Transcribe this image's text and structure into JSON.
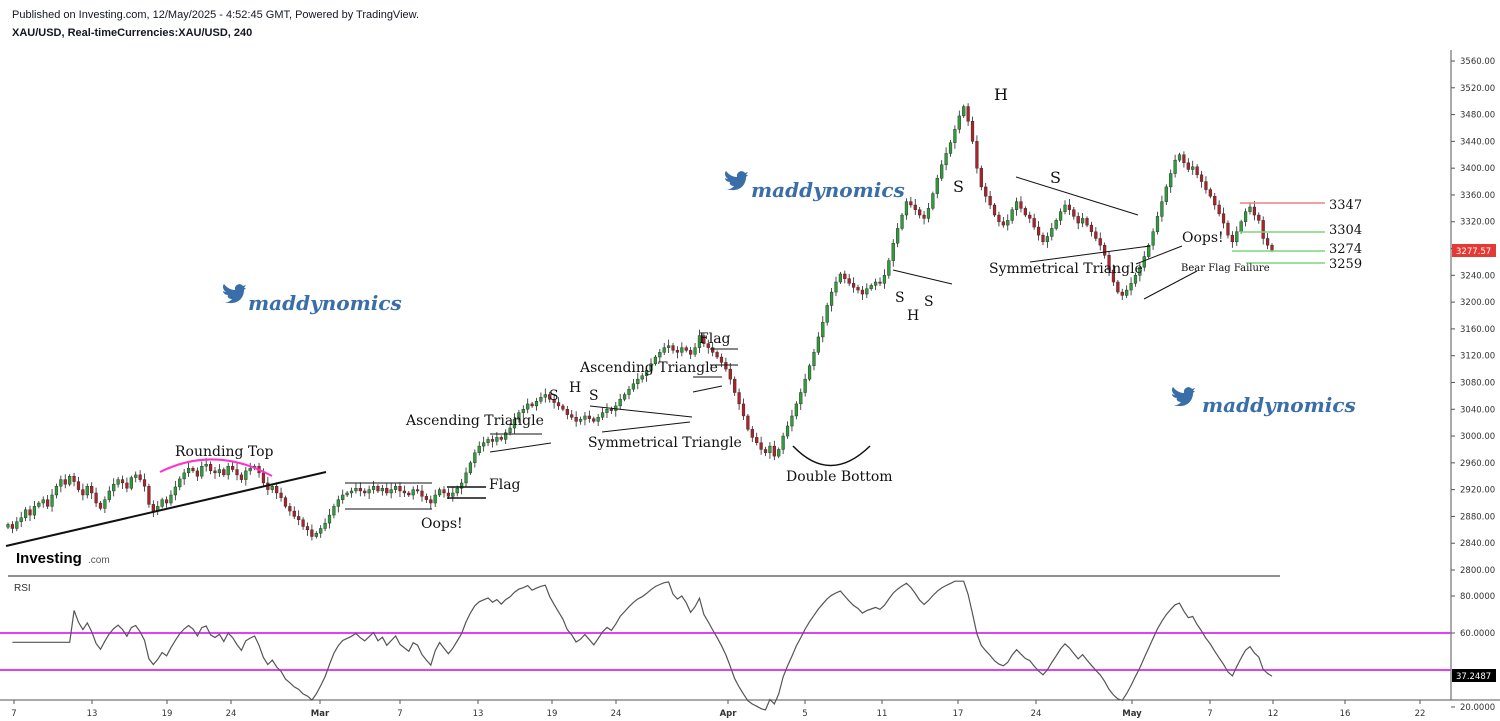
{
  "header": {
    "published": "Published on Investing.com, 12/May/2025 - 4:52:45 GMT, Powered by TradingView.",
    "symbol": "XAU/USD, Real-timeCurrencies:XAU/USD, 240"
  },
  "branding": {
    "logo": "Investing",
    "logo_suffix": ".com",
    "watermark": "maddynomics"
  },
  "chart_data": {
    "type": "candlestick",
    "price_axis": {
      "range": [
        2780,
        3570
      ],
      "ticks": [
        "3560.00",
        "3520.00",
        "3480.00",
        "3440.00",
        "3400.00",
        "3360.00",
        "3320.00",
        "3280.00",
        "3240.00",
        "3200.00",
        "3160.00",
        "3120.00",
        "3080.00",
        "3040.00",
        "3000.00",
        "2960.00",
        "2920.00",
        "2880.00",
        "2840.00",
        "2800.00"
      ],
      "current_price": "3277.57"
    },
    "x_axis": {
      "ticks": [
        {
          "label": "7",
          "bold": false
        },
        {
          "label": "13",
          "bold": false
        },
        {
          "label": "19",
          "bold": false
        },
        {
          "label": "24",
          "bold": false
        },
        {
          "label": "Mar",
          "bold": true
        },
        {
          "label": "7",
          "bold": false
        },
        {
          "label": "13",
          "bold": false
        },
        {
          "label": "19",
          "bold": false
        },
        {
          "label": "24",
          "bold": false
        },
        {
          "label": "Apr",
          "bold": true
        },
        {
          "label": "5",
          "bold": false
        },
        {
          "label": "11",
          "bold": false
        },
        {
          "label": "17",
          "bold": false
        },
        {
          "label": "24",
          "bold": false
        },
        {
          "label": "May",
          "bold": true
        },
        {
          "label": "7",
          "bold": false
        },
        {
          "label": "12",
          "bold": false
        },
        {
          "label": "16",
          "bold": false
        },
        {
          "label": "22",
          "bold": false
        }
      ]
    },
    "closes": [
      2868,
      2862,
      2872,
      2878,
      2890,
      2882,
      2895,
      2900,
      2905,
      2895,
      2912,
      2925,
      2935,
      2928,
      2940,
      2932,
      2920,
      2912,
      2925,
      2915,
      2900,
      2892,
      2905,
      2918,
      2928,
      2935,
      2930,
      2922,
      2938,
      2942,
      2935,
      2925,
      2898,
      2888,
      2895,
      2905,
      2900,
      2912,
      2924,
      2936,
      2945,
      2952,
      2948,
      2940,
      2955,
      2958,
      2948,
      2945,
      2950,
      2942,
      2955,
      2950,
      2942,
      2935,
      2948,
      2952,
      2955,
      2945,
      2930,
      2920,
      2925,
      2915,
      2908,
      2895,
      2888,
      2880,
      2875,
      2865,
      2860,
      2850,
      2855,
      2862,
      2870,
      2882,
      2895,
      2905,
      2912,
      2915,
      2918,
      2922,
      2918,
      2915,
      2920,
      2925,
      2918,
      2922,
      2915,
      2920,
      2925,
      2918,
      2915,
      2912,
      2920,
      2918,
      2910,
      2905,
      2900,
      2912,
      2920,
      2915,
      2910,
      2915,
      2922,
      2930,
      2945,
      2960,
      2975,
      2985,
      2990,
      2995,
      2992,
      2998,
      2995,
      3005,
      3012,
      3025,
      3035,
      3040,
      3048,
      3045,
      3052,
      3058,
      3062,
      3055,
      3050,
      3045,
      3040,
      3032,
      3028,
      3022,
      3025,
      3030,
      3026,
      3022,
      3028,
      3035,
      3040,
      3038,
      3045,
      3055,
      3062,
      3070,
      3078,
      3085,
      3090,
      3098,
      3108,
      3118,
      3125,
      3132,
      3135,
      3128,
      3125,
      3132,
      3128,
      3122,
      3132,
      3150,
      3138,
      3132,
      3125,
      3118,
      3110,
      3100,
      3085,
      3065,
      3048,
      3030,
      3010,
      2998,
      2990,
      2980,
      2975,
      2985,
      2970,
      2980,
      3000,
      3015,
      3030,
      3048,
      3065,
      3085,
      3105,
      3125,
      3148,
      3170,
      3195,
      3215,
      3230,
      3242,
      3235,
      3228,
      3222,
      3218,
      3212,
      3220,
      3225,
      3230,
      3228,
      3240,
      3262,
      3288,
      3310,
      3330,
      3350,
      3345,
      3338,
      3330,
      3325,
      3340,
      3362,
      3385,
      3405,
      3422,
      3438,
      3458,
      3478,
      3492,
      3470,
      3440,
      3400,
      3372,
      3358,
      3345,
      3330,
      3320,
      3315,
      3322,
      3338,
      3350,
      3340,
      3330,
      3325,
      3312,
      3300,
      3290,
      3298,
      3310,
      3322,
      3335,
      3345,
      3338,
      3328,
      3318,
      3325,
      3315,
      3305,
      3295,
      3285,
      3270,
      3248,
      3230,
      3215,
      3210,
      3218,
      3228,
      3240,
      3252,
      3268,
      3285,
      3305,
      3328,
      3350,
      3372,
      3392,
      3412,
      3420,
      3408,
      3398,
      3402,
      3390,
      3380,
      3368,
      3358,
      3345,
      3332,
      3318,
      3300,
      3290,
      3305,
      3320,
      3335,
      3342,
      3330,
      3322,
      3295,
      3285,
      3277.57
    ],
    "rsi": {
      "label": "RSI",
      "current": "37.2487",
      "levels": [
        "60.0000",
        "40.0000"
      ],
      "ticks": [
        "80.0000",
        "60.0000",
        "40.0000",
        "20.0000"
      ]
    },
    "levels": [
      {
        "label": "3347",
        "color": "#f08080"
      },
      {
        "label": "3304",
        "color": "#7dd67d"
      },
      {
        "label": "3274",
        "color": "#7dd67d"
      },
      {
        "label": "3259",
        "color": "#7dd67d"
      }
    ],
    "annotations": {
      "rounding_top": "Rounding Top",
      "flag1": "Flag",
      "oops1": "Oops!",
      "asc_tri1": "Ascending Triangle",
      "sym_tri1": "Symmetrical Triangle",
      "asc_tri2": "Ascending Triangle",
      "flag2": "Flag",
      "double_bottom": "Double Bottom",
      "sym_tri2": "Symmetrical Triangle",
      "oops2": "Oops!",
      "bear_flag": "Bear Flag Failure",
      "s1": "S",
      "h1": "H",
      "s2": "S",
      "s3": "S",
      "h2": "H",
      "s4": "S",
      "s5": "S",
      "h3": "H",
      "s6": "S"
    }
  }
}
